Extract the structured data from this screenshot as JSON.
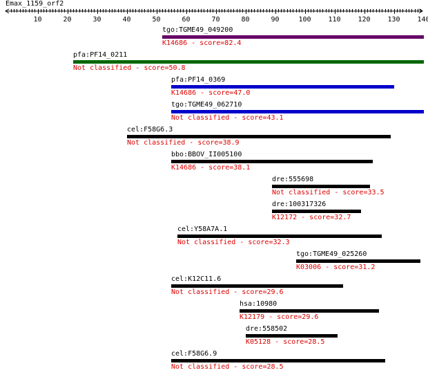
{
  "query": {
    "title": "Emax_1159_orf2"
  },
  "ruler": {
    "ticks": [
      "10",
      "20",
      "30",
      "40",
      "50",
      "60",
      "70",
      "80",
      "90",
      "100",
      "110",
      "120",
      "130",
      "140"
    ]
  },
  "colors": {
    "score_text": "#dd0000",
    "name_text": "#000000"
  },
  "hits": [
    {
      "name": "tgo:TGME49_049200",
      "start": 52,
      "end": 140,
      "color": "#660066",
      "ann": "K14686 - score=82.4"
    },
    {
      "name": "pfa:PF14_0211",
      "start": 22,
      "end": 140,
      "color": "#006600",
      "ann": "Not classified - score=50.8"
    },
    {
      "name": "pfa:PF14_0369",
      "start": 55,
      "end": 130,
      "color": "#0000cc",
      "ann": "K14686 - score=47.0"
    },
    {
      "name": "tgo:TGME49_062710",
      "start": 55,
      "end": 140,
      "color": "#0000cc",
      "ann": "Not classified - score=43.1"
    },
    {
      "name": "cel:F58G6.3",
      "start": 40,
      "end": 129,
      "color": "#000000",
      "ann": "Not classified - score=38.9"
    },
    {
      "name": "bbo:BBOV_II005100",
      "start": 55,
      "end": 123,
      "color": "#000000",
      "ann": "K14686 - score=38.1"
    },
    {
      "name": "dre:555698",
      "start": 89,
      "end": 122,
      "color": "#000000",
      "ann": "Not classified - score=33.5"
    },
    {
      "name": "dre:100317326",
      "start": 89,
      "end": 119,
      "color": "#000000",
      "ann": "K12172 - score=32.7"
    },
    {
      "name": "cel:Y58A7A.1",
      "start": 57,
      "end": 126,
      "color": "#000000",
      "ann": "Not classified - score=32.3"
    },
    {
      "name": "tgo:TGME49_025260",
      "start": 97,
      "end": 139,
      "color": "#000000",
      "ann": "K03006 - score=31.2"
    },
    {
      "name": "cel:K12C11.6",
      "start": 55,
      "end": 113,
      "color": "#000000",
      "ann": "Not classified - score=29.6"
    },
    {
      "name": "hsa:10980",
      "start": 78,
      "end": 125,
      "color": "#000000",
      "ann": "K12179 - score=29.6"
    },
    {
      "name": "dre:558502",
      "start": 80,
      "end": 111,
      "color": "#000000",
      "ann": "K05128 - score=28.5"
    },
    {
      "name": "cel:F58G6.9",
      "start": 55,
      "end": 127,
      "color": "#000000",
      "ann": "Not classified - score=28.5"
    }
  ]
}
